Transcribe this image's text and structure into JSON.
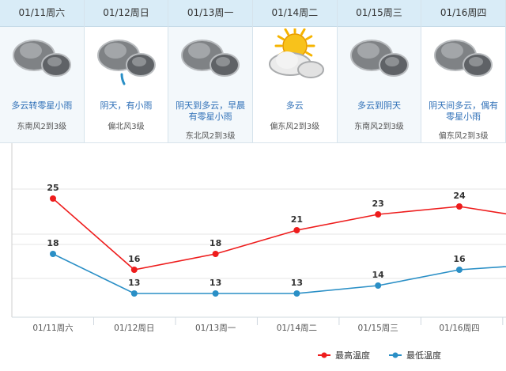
{
  "days": [
    {
      "date": "01/11周六",
      "desc": [
        "多云转零星小雨"
      ],
      "wind": "东南风2到3级",
      "icon": "cloud-icon"
    },
    {
      "date": "01/12周日",
      "desc": [
        "阴天，有小雨"
      ],
      "wind": "偏北风3级",
      "icon": "rain-cloud-icon"
    },
    {
      "date": "01/13周一",
      "desc": [
        "阴天到多云，早晨",
        "有零星小雨"
      ],
      "wind": "东北风2到3级",
      "icon": "cloud-icon"
    },
    {
      "date": "01/14周二",
      "desc": [
        "多云"
      ],
      "wind": "偏东风2到3级",
      "icon": "sun-cloud-icon"
    },
    {
      "date": "01/15周三",
      "desc": [
        "多云到阴天"
      ],
      "wind": "东南风2到3级",
      "icon": "cloud-icon"
    },
    {
      "date": "01/16周四",
      "desc": [
        "阴天间多云，偶有",
        "零星小雨"
      ],
      "wind": "偏东风2到3级",
      "icon": "cloud-icon"
    }
  ],
  "chart_data": {
    "type": "line",
    "categories": [
      "01/11周六",
      "01/12周日",
      "01/13周一",
      "01/14周二",
      "01/15周三",
      "01/16周四"
    ],
    "series": [
      {
        "name": "最高温度",
        "values": [
          25,
          16,
          18,
          21,
          23,
          24
        ],
        "color": "#ee1c1c"
      },
      {
        "name": "最低温度",
        "values": [
          18,
          13,
          13,
          13,
          14,
          16
        ],
        "color": "#2a8fc6"
      }
    ],
    "ylim": [
      10,
      28
    ],
    "grid": true,
    "legend": "bottom-right"
  }
}
